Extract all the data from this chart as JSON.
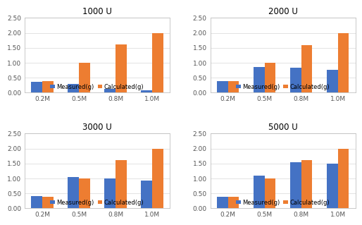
{
  "subplots": [
    {
      "title": "1000 U",
      "categories": [
        "0.2M",
        "0.5M",
        "0.8M",
        "1.0M"
      ],
      "measured": [
        0.35,
        0.28,
        0.13,
        0.07
      ],
      "calculated": [
        0.38,
        1.0,
        1.6,
        2.0
      ]
    },
    {
      "title": "2000 U",
      "categories": [
        "0.2M",
        "0.5M",
        "0.8M",
        "1.0M"
      ],
      "measured": [
        0.38,
        0.85,
        0.82,
        0.75
      ],
      "calculated": [
        0.38,
        1.0,
        1.58,
        2.0
      ]
    },
    {
      "title": "3000 U",
      "categories": [
        "0.2M",
        "0.5M",
        "0.8M",
        "1.0M"
      ],
      "measured": [
        0.4,
        1.04,
        1.0,
        0.93
      ],
      "calculated": [
        0.38,
        1.0,
        1.6,
        2.0
      ]
    },
    {
      "title": "5000 U",
      "categories": [
        "0.2M",
        "0.5M",
        "0.8M",
        "1.0M"
      ],
      "measured": [
        0.38,
        1.08,
        1.55,
        1.5
      ],
      "calculated": [
        0.38,
        1.0,
        1.6,
        2.0
      ]
    }
  ],
  "measured_color": "#4472C4",
  "calculated_color": "#ED7D31",
  "ylim": [
    0,
    2.5
  ],
  "yticks": [
    0.0,
    0.5,
    1.0,
    1.5,
    2.0,
    2.5
  ],
  "legend_labels": [
    "Measured(g)",
    "Calculated(g)"
  ],
  "bar_width": 0.3,
  "background_color": "#ffffff",
  "grid_color": "#d8d8d8",
  "spine_color": "#c0c0c0",
  "title_fontsize": 8.5,
  "tick_fontsize": 6.5,
  "legend_fontsize": 6
}
